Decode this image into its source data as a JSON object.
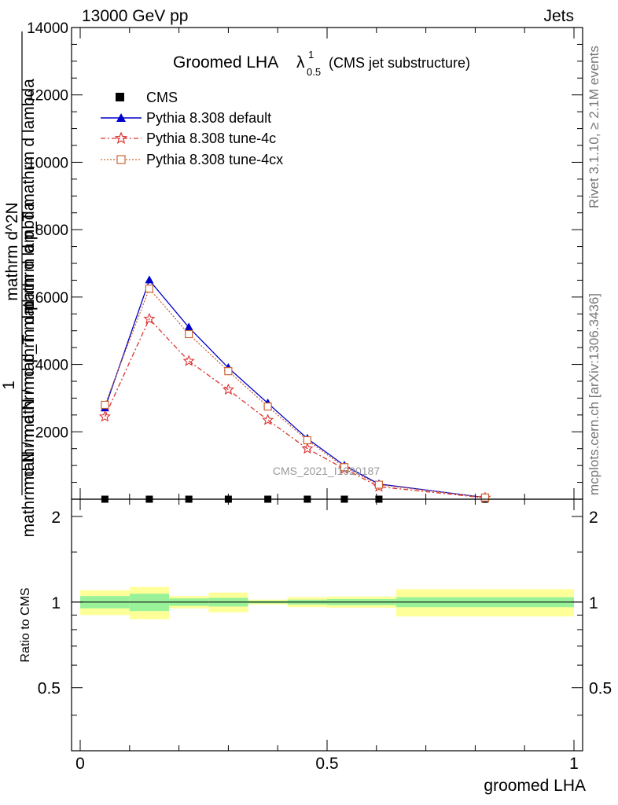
{
  "header": {
    "left": "13000 GeV pp",
    "right": "Jets"
  },
  "side_text": {
    "rivet": "Rivet 3.1.10, ≥ 2.1M events",
    "mcplots": "mcplots.cern.ch [arXiv:1306.3436]"
  },
  "watermark": "CMS_2021_I1920187",
  "colors": {
    "cms": "#000000",
    "default": "#0000cc",
    "tune4c": "#dd3333",
    "tune4cx": "#cc6633",
    "band_inner": "#99f299",
    "band_outer": "#ffff99"
  },
  "chart_data": [
    {
      "type": "line",
      "title_main": "Groomed LHA",
      "title_lambda": "λ",
      "title_sup": "1",
      "title_sub": "0.5",
      "title_paren": "(CMS jet substructure)",
      "ylabel": "mathrm d N / mathrm d p_T mathrm d lambda",
      "ylabel_frac_top": "1",
      "ylabel_line1": "mathrm d^2N",
      "ylabel_line2": "mathrm d p_T mathrm d lambda",
      "ylabel_frac_prefix": "mathrm d N / mathrm d p",
      "xlim": [
        0,
        1
      ],
      "ylim": [
        0,
        14000
      ],
      "yticks": [
        2000,
        4000,
        6000,
        8000,
        10000,
        12000,
        14000
      ],
      "yticklabels": [
        "2000",
        "4000",
        "6000",
        "8000",
        "10000",
        "12000",
        "14000"
      ],
      "legend_position": "top-left",
      "x": [
        0.05,
        0.14,
        0.22,
        0.3,
        0.38,
        0.46,
        0.535,
        0.605,
        0.82
      ],
      "series": [
        {
          "name": "CMS",
          "marker": "square",
          "values": [
            0,
            0,
            0,
            0,
            0,
            0,
            0,
            0,
            0
          ]
        },
        {
          "name": "Pythia 8.308 default",
          "marker": "triangle",
          "values": [
            2700,
            6500,
            5100,
            3900,
            2850,
            1800,
            1000,
            450,
            50
          ]
        },
        {
          "name": "Pythia 8.308 tune-4c",
          "marker": "star",
          "values": [
            2450,
            5350,
            4100,
            3250,
            2350,
            1500,
            900,
            370,
            40
          ]
        },
        {
          "name": "Pythia 8.308 tune-4cx",
          "marker": "open-square",
          "values": [
            2800,
            6250,
            4900,
            3800,
            2750,
            1750,
            950,
            430,
            50
          ]
        }
      ]
    },
    {
      "type": "area",
      "ylabel": "Ratio to CMS",
      "xlabel": "groomed LHA",
      "xlim": [
        0,
        1
      ],
      "ylim": [
        0.3,
        2.3
      ],
      "xticks": [
        0,
        0.5,
        1
      ],
      "xticklabels": [
        "0",
        "0.5",
        "1"
      ],
      "yticks": [
        0.5,
        1,
        2
      ],
      "yticklabels": [
        "0.5",
        "1",
        "2"
      ],
      "bins": [
        {
          "x": [
            0.0,
            0.1
          ],
          "inner": [
            0.95,
            1.05
          ],
          "outer": [
            0.9,
            1.1
          ]
        },
        {
          "x": [
            0.1,
            0.18
          ],
          "inner": [
            0.93,
            1.07
          ],
          "outer": [
            0.87,
            1.13
          ]
        },
        {
          "x": [
            0.18,
            0.26
          ],
          "inner": [
            0.97,
            1.03
          ],
          "outer": [
            0.95,
            1.05
          ]
        },
        {
          "x": [
            0.26,
            0.34
          ],
          "inner": [
            0.965,
            1.035
          ],
          "outer": [
            0.92,
            1.08
          ]
        },
        {
          "x": [
            0.34,
            0.42
          ],
          "inner": [
            0.99,
            1.01
          ],
          "outer": [
            0.98,
            1.02
          ]
        },
        {
          "x": [
            0.42,
            0.5
          ],
          "inner": [
            0.98,
            1.02
          ],
          "outer": [
            0.96,
            1.04
          ]
        },
        {
          "x": [
            0.5,
            0.64
          ],
          "inner": [
            0.975,
            1.025
          ],
          "outer": [
            0.955,
            1.045
          ]
        },
        {
          "x": [
            0.64,
            1.0
          ],
          "inner": [
            0.96,
            1.04
          ],
          "outer": [
            0.89,
            1.11
          ]
        }
      ],
      "reference": 1
    }
  ]
}
